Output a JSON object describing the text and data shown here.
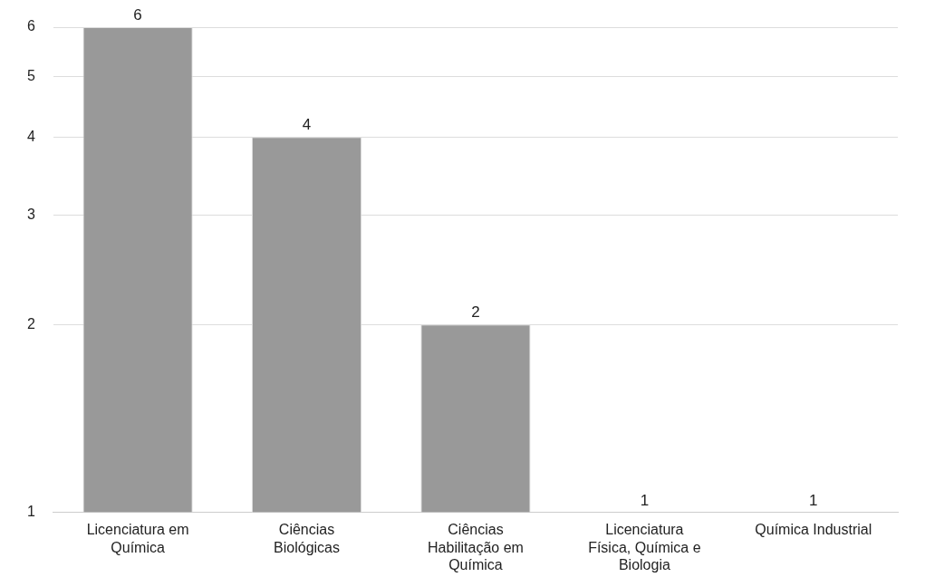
{
  "chart_data": {
    "type": "bar",
    "categories": [
      "Licenciatura em Química",
      "Ciências Biológicas",
      "Ciências Habilitação em Química",
      "Licenciatura Física, Química e Biologia",
      "Química Industrial"
    ],
    "values": [
      6,
      4,
      2,
      1,
      1
    ],
    "color": "#999999",
    "log": "y",
    "ylim": [
      1,
      6
    ],
    "yticks": [
      1,
      2,
      3,
      4,
      5,
      6
    ],
    "grid": "y",
    "data_labels": true,
    "legend": false
  }
}
